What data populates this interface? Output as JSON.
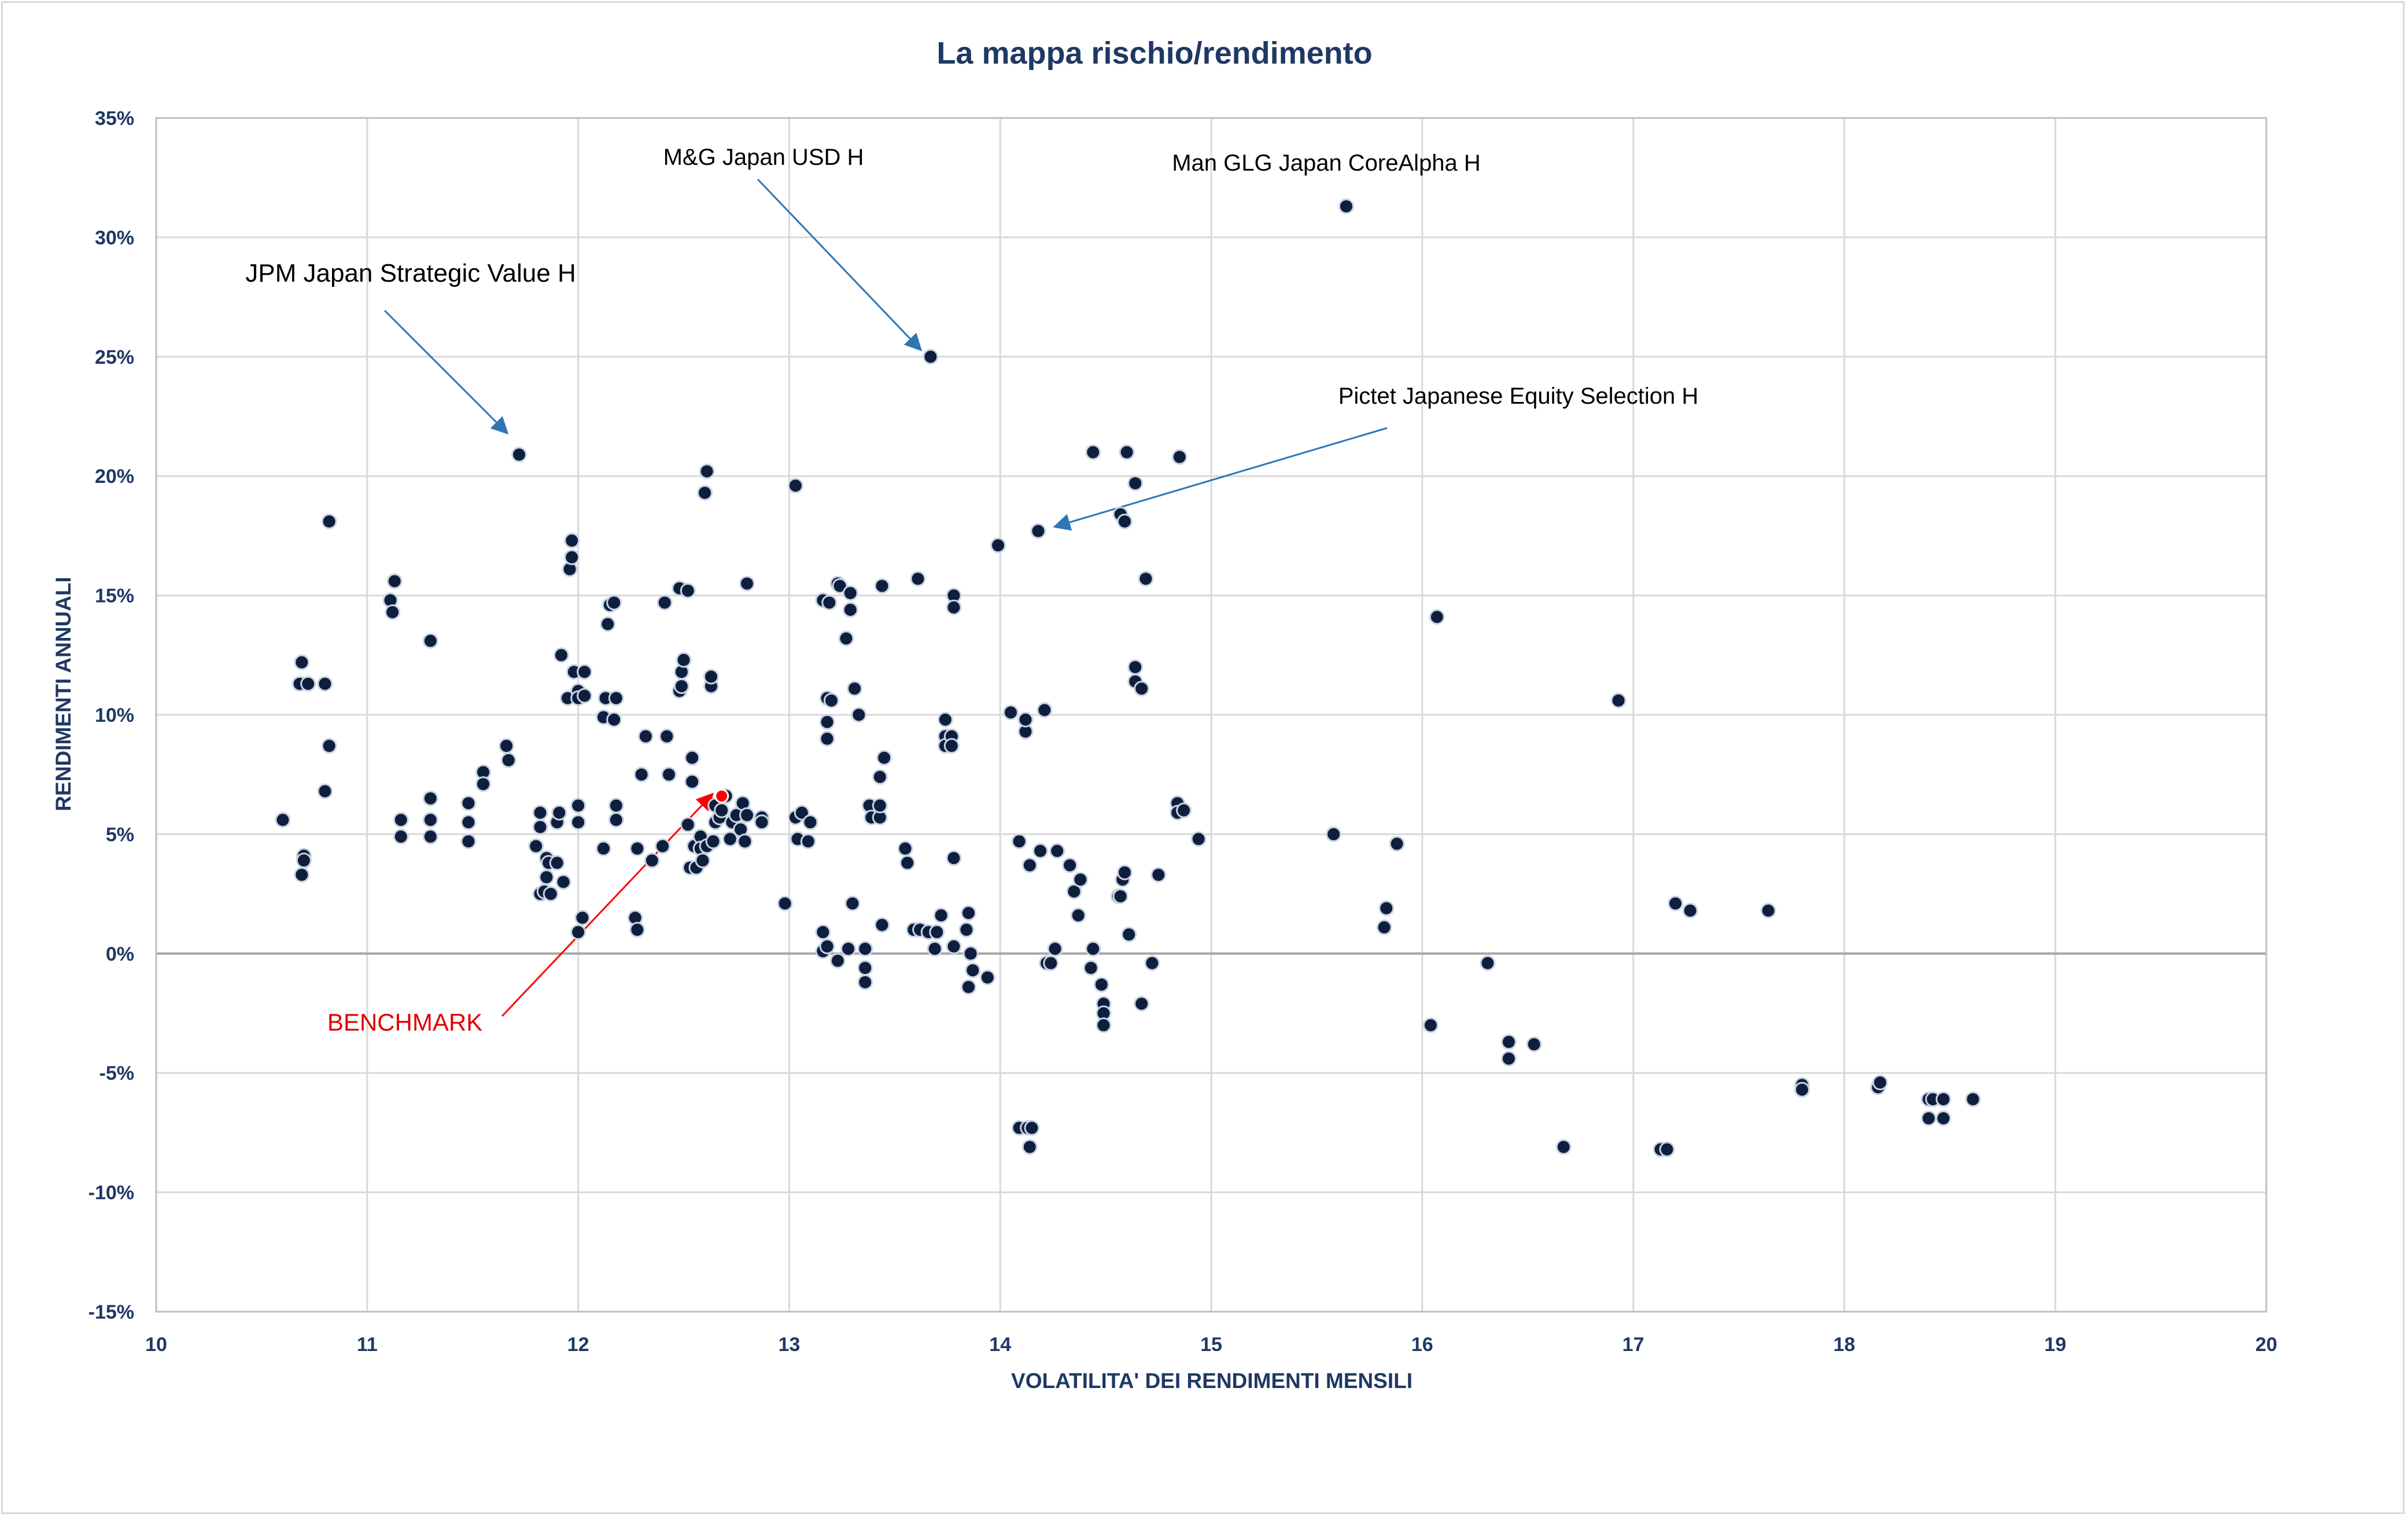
{
  "chart_data": {
    "type": "scatter",
    "title": "La mappa rischio/rendimento",
    "xlabel": "VOLATILITA' DEI RENDIMENTI MENSILI",
    "ylabel": "RENDIMENTI ANNUALI",
    "xlim": [
      10,
      20
    ],
    "ylim": [
      -15,
      35
    ],
    "x_ticks": [
      "10",
      "11",
      "12",
      "13",
      "14",
      "15",
      "16",
      "17",
      "18",
      "19",
      "20"
    ],
    "y_ticks": [
      "35%",
      "30%",
      "25%",
      "20%",
      "15%",
      "10%",
      "5%",
      "0%",
      "-5%",
      "-10%",
      "-15%"
    ],
    "grid": true,
    "marker_color": "#0d1f3c",
    "benchmark_color": "#ff0000",
    "annotation_color": "#2e75b6",
    "annotations": [
      {
        "text": "M&G Japan USD H",
        "point": [
          13.67,
          25.0
        ]
      },
      {
        "text": "Man GLG Japan CoreAlpha H",
        "point": [
          15.64,
          31.3
        ]
      },
      {
        "text": "JPM Japan Strategic Value H",
        "point": [
          11.72,
          20.9
        ]
      },
      {
        "text": "Pictet Japanese Equity Selection H",
        "point": [
          14.18,
          17.7
        ]
      },
      {
        "text": "BENCHMARK",
        "point": [
          12.68,
          6.6
        ]
      }
    ],
    "benchmark": {
      "x": 12.68,
      "y": 6.6
    },
    "series": [
      {
        "points": [
          [
            10.6,
            5.6
          ],
          [
            10.69,
            12.2
          ],
          [
            10.68,
            11.3
          ],
          [
            10.72,
            11.3
          ],
          [
            10.8,
            11.3
          ],
          [
            10.7,
            4.1
          ],
          [
            10.7,
            3.9
          ],
          [
            10.69,
            3.3
          ],
          [
            10.8,
            6.8
          ],
          [
            10.82,
            8.7
          ],
          [
            10.82,
            18.1
          ],
          [
            11.11,
            14.8
          ],
          [
            11.12,
            14.3
          ],
          [
            11.13,
            15.6
          ],
          [
            11.16,
            5.6
          ],
          [
            11.16,
            4.9
          ],
          [
            11.3,
            13.1
          ],
          [
            11.3,
            6.5
          ],
          [
            11.3,
            5.6
          ],
          [
            11.3,
            4.9
          ],
          [
            11.48,
            6.3
          ],
          [
            11.48,
            5.5
          ],
          [
            11.48,
            4.7
          ],
          [
            11.55,
            7.6
          ],
          [
            11.55,
            7.1
          ],
          [
            11.66,
            8.7
          ],
          [
            11.67,
            8.1
          ],
          [
            11.72,
            20.9
          ],
          [
            11.8,
            4.5
          ],
          [
            11.82,
            5.9
          ],
          [
            11.82,
            5.3
          ],
          [
            11.82,
            2.5
          ],
          [
            11.84,
            2.6
          ],
          [
            11.85,
            4.0
          ],
          [
            11.86,
            3.8
          ],
          [
            11.85,
            3.2
          ],
          [
            11.87,
            2.5
          ],
          [
            11.9,
            3.8
          ],
          [
            11.9,
            5.5
          ],
          [
            11.91,
            5.9
          ],
          [
            11.92,
            12.5
          ],
          [
            11.93,
            3.0
          ],
          [
            11.95,
            10.7
          ],
          [
            11.96,
            16.1
          ],
          [
            11.97,
            16.6
          ],
          [
            11.97,
            17.3
          ],
          [
            11.98,
            11.8
          ],
          [
            12.0,
            11.0
          ],
          [
            12.0,
            10.7
          ],
          [
            12.0,
            6.2
          ],
          [
            12.0,
            5.5
          ],
          [
            12.0,
            0.9
          ],
          [
            12.02,
            1.5
          ],
          [
            12.03,
            11.8
          ],
          [
            12.03,
            10.8
          ],
          [
            12.12,
            9.9
          ],
          [
            12.12,
            4.4
          ],
          [
            12.13,
            10.7
          ],
          [
            12.14,
            13.8
          ],
          [
            12.15,
            14.6
          ],
          [
            12.17,
            14.7
          ],
          [
            12.17,
            9.8
          ],
          [
            12.18,
            10.7
          ],
          [
            12.18,
            6.2
          ],
          [
            12.18,
            5.6
          ],
          [
            12.27,
            1.5
          ],
          [
            12.28,
            1.0
          ],
          [
            12.28,
            4.4
          ],
          [
            12.3,
            7.5
          ],
          [
            12.32,
            9.1
          ],
          [
            12.35,
            3.9
          ],
          [
            12.4,
            4.5
          ],
          [
            12.41,
            14.7
          ],
          [
            12.42,
            9.1
          ],
          [
            12.43,
            7.5
          ],
          [
            12.48,
            15.3
          ],
          [
            12.48,
            11.0
          ],
          [
            12.49,
            11.2
          ],
          [
            12.49,
            11.8
          ],
          [
            12.5,
            12.3
          ],
          [
            12.52,
            15.2
          ],
          [
            12.52,
            5.4
          ],
          [
            12.53,
            3.6
          ],
          [
            12.54,
            8.2
          ],
          [
            12.54,
            7.2
          ],
          [
            12.55,
            4.5
          ],
          [
            12.56,
            3.6
          ],
          [
            12.58,
            4.9
          ],
          [
            12.58,
            4.4
          ],
          [
            12.59,
            3.9
          ],
          [
            12.6,
            19.3
          ],
          [
            12.61,
            20.2
          ],
          [
            12.61,
            4.5
          ],
          [
            12.63,
            11.2
          ],
          [
            12.63,
            11.6
          ],
          [
            12.64,
            4.7
          ],
          [
            12.65,
            5.5
          ],
          [
            12.65,
            6.2
          ],
          [
            12.67,
            5.7
          ],
          [
            12.68,
            6.0
          ],
          [
            12.7,
            6.6
          ],
          [
            12.72,
            4.8
          ],
          [
            12.73,
            5.5
          ],
          [
            12.75,
            5.8
          ],
          [
            12.77,
            5.2
          ],
          [
            12.78,
            6.3
          ],
          [
            12.79,
            4.7
          ],
          [
            12.8,
            5.8
          ],
          [
            12.8,
            15.5
          ],
          [
            12.87,
            5.7
          ],
          [
            12.87,
            5.5
          ],
          [
            12.98,
            2.1
          ],
          [
            13.03,
            19.6
          ],
          [
            13.03,
            5.7
          ],
          [
            13.04,
            4.8
          ],
          [
            13.06,
            5.9
          ],
          [
            13.09,
            4.7
          ],
          [
            13.1,
            5.5
          ],
          [
            13.16,
            14.8
          ],
          [
            13.16,
            0.9
          ],
          [
            13.16,
            0.1
          ],
          [
            13.18,
            10.7
          ],
          [
            13.18,
            9.7
          ],
          [
            13.18,
            9.0
          ],
          [
            13.18,
            0.3
          ],
          [
            13.2,
            10.6
          ],
          [
            13.19,
            14.7
          ],
          [
            13.23,
            15.5
          ],
          [
            13.24,
            15.4
          ],
          [
            13.23,
            -0.3
          ],
          [
            13.27,
            13.2
          ],
          [
            13.28,
            0.2
          ],
          [
            13.29,
            15.1
          ],
          [
            13.29,
            14.4
          ],
          [
            13.3,
            2.1
          ],
          [
            13.31,
            11.1
          ],
          [
            13.33,
            10.0
          ],
          [
            13.36,
            0.2
          ],
          [
            13.36,
            -1.2
          ],
          [
            13.36,
            -0.6
          ],
          [
            13.38,
            6.2
          ],
          [
            13.39,
            5.7
          ],
          [
            13.43,
            5.7
          ],
          [
            13.43,
            6.2
          ],
          [
            13.43,
            7.4
          ],
          [
            13.45,
            8.2
          ],
          [
            13.44,
            15.4
          ],
          [
            13.44,
            1.2
          ],
          [
            13.55,
            4.4
          ],
          [
            13.56,
            3.8
          ],
          [
            13.59,
            1.0
          ],
          [
            13.61,
            15.7
          ],
          [
            13.62,
            1.0
          ],
          [
            13.67,
            25.0
          ],
          [
            13.66,
            0.9
          ],
          [
            13.69,
            0.2
          ],
          [
            13.7,
            0.9
          ],
          [
            13.72,
            1.6
          ],
          [
            13.74,
            9.8
          ],
          [
            13.74,
            9.1
          ],
          [
            13.74,
            8.7
          ],
          [
            13.77,
            9.1
          ],
          [
            13.77,
            8.7
          ],
          [
            13.78,
            15.0
          ],
          [
            13.78,
            14.5
          ],
          [
            13.78,
            4.0
          ],
          [
            13.78,
            0.3
          ],
          [
            13.84,
            1.0
          ],
          [
            13.85,
            1.7
          ],
          [
            13.85,
            -1.4
          ],
          [
            13.86,
            0.0
          ],
          [
            13.87,
            -0.7
          ],
          [
            13.94,
            -1.0
          ],
          [
            13.99,
            17.1
          ],
          [
            14.05,
            10.1
          ],
          [
            14.09,
            4.7
          ],
          [
            14.09,
            -7.3
          ],
          [
            14.12,
            9.3
          ],
          [
            14.12,
            9.8
          ],
          [
            14.13,
            -7.3
          ],
          [
            14.14,
            -8.1
          ],
          [
            14.15,
            -7.3
          ],
          [
            14.14,
            3.7
          ],
          [
            14.18,
            17.7
          ],
          [
            14.19,
            4.3
          ],
          [
            14.21,
            10.2
          ],
          [
            14.22,
            -0.4
          ],
          [
            14.24,
            -0.4
          ],
          [
            14.26,
            0.2
          ],
          [
            14.27,
            4.3
          ],
          [
            14.33,
            3.7
          ],
          [
            14.35,
            2.6
          ],
          [
            14.37,
            1.6
          ],
          [
            14.38,
            3.1
          ],
          [
            14.44,
            0.2
          ],
          [
            14.43,
            -0.6
          ],
          [
            14.44,
            21.0
          ],
          [
            14.48,
            -1.3
          ],
          [
            14.49,
            -2.1
          ],
          [
            14.49,
            -2.5
          ],
          [
            14.49,
            -3.0
          ],
          [
            14.56,
            2.4
          ],
          [
            14.57,
            2.4
          ],
          [
            14.57,
            18.4
          ],
          [
            14.58,
            3.1
          ],
          [
            14.59,
            3.4
          ],
          [
            14.59,
            18.1
          ],
          [
            14.6,
            21.0
          ],
          [
            14.61,
            0.8
          ],
          [
            14.64,
            19.7
          ],
          [
            14.64,
            12.0
          ],
          [
            14.64,
            11.4
          ],
          [
            14.67,
            11.1
          ],
          [
            14.67,
            -2.1
          ],
          [
            14.69,
            15.7
          ],
          [
            14.72,
            -0.4
          ],
          [
            14.75,
            3.3
          ],
          [
            14.84,
            6.3
          ],
          [
            14.84,
            5.9
          ],
          [
            14.85,
            20.8
          ],
          [
            14.87,
            6.0
          ],
          [
            14.94,
            4.8
          ],
          [
            15.58,
            5.0
          ],
          [
            15.64,
            31.3
          ],
          [
            15.82,
            1.1
          ],
          [
            15.83,
            1.9
          ],
          [
            15.88,
            4.6
          ],
          [
            16.04,
            -3.0
          ],
          [
            16.07,
            14.1
          ],
          [
            16.31,
            -0.4
          ],
          [
            16.41,
            -3.7
          ],
          [
            16.41,
            -4.4
          ],
          [
            16.53,
            -3.8
          ],
          [
            16.67,
            -8.1
          ],
          [
            16.93,
            10.6
          ],
          [
            17.13,
            -8.2
          ],
          [
            17.16,
            -8.2
          ],
          [
            17.2,
            2.1
          ],
          [
            17.27,
            1.8
          ],
          [
            17.64,
            1.8
          ],
          [
            17.8,
            -5.5
          ],
          [
            17.8,
            -5.7
          ],
          [
            18.16,
            -5.6
          ],
          [
            18.17,
            -5.4
          ],
          [
            18.4,
            -6.1
          ],
          [
            18.42,
            -6.1
          ],
          [
            18.4,
            -6.9
          ],
          [
            18.47,
            -6.1
          ],
          [
            18.47,
            -6.9
          ],
          [
            18.61,
            -6.1
          ]
        ]
      }
    ]
  }
}
